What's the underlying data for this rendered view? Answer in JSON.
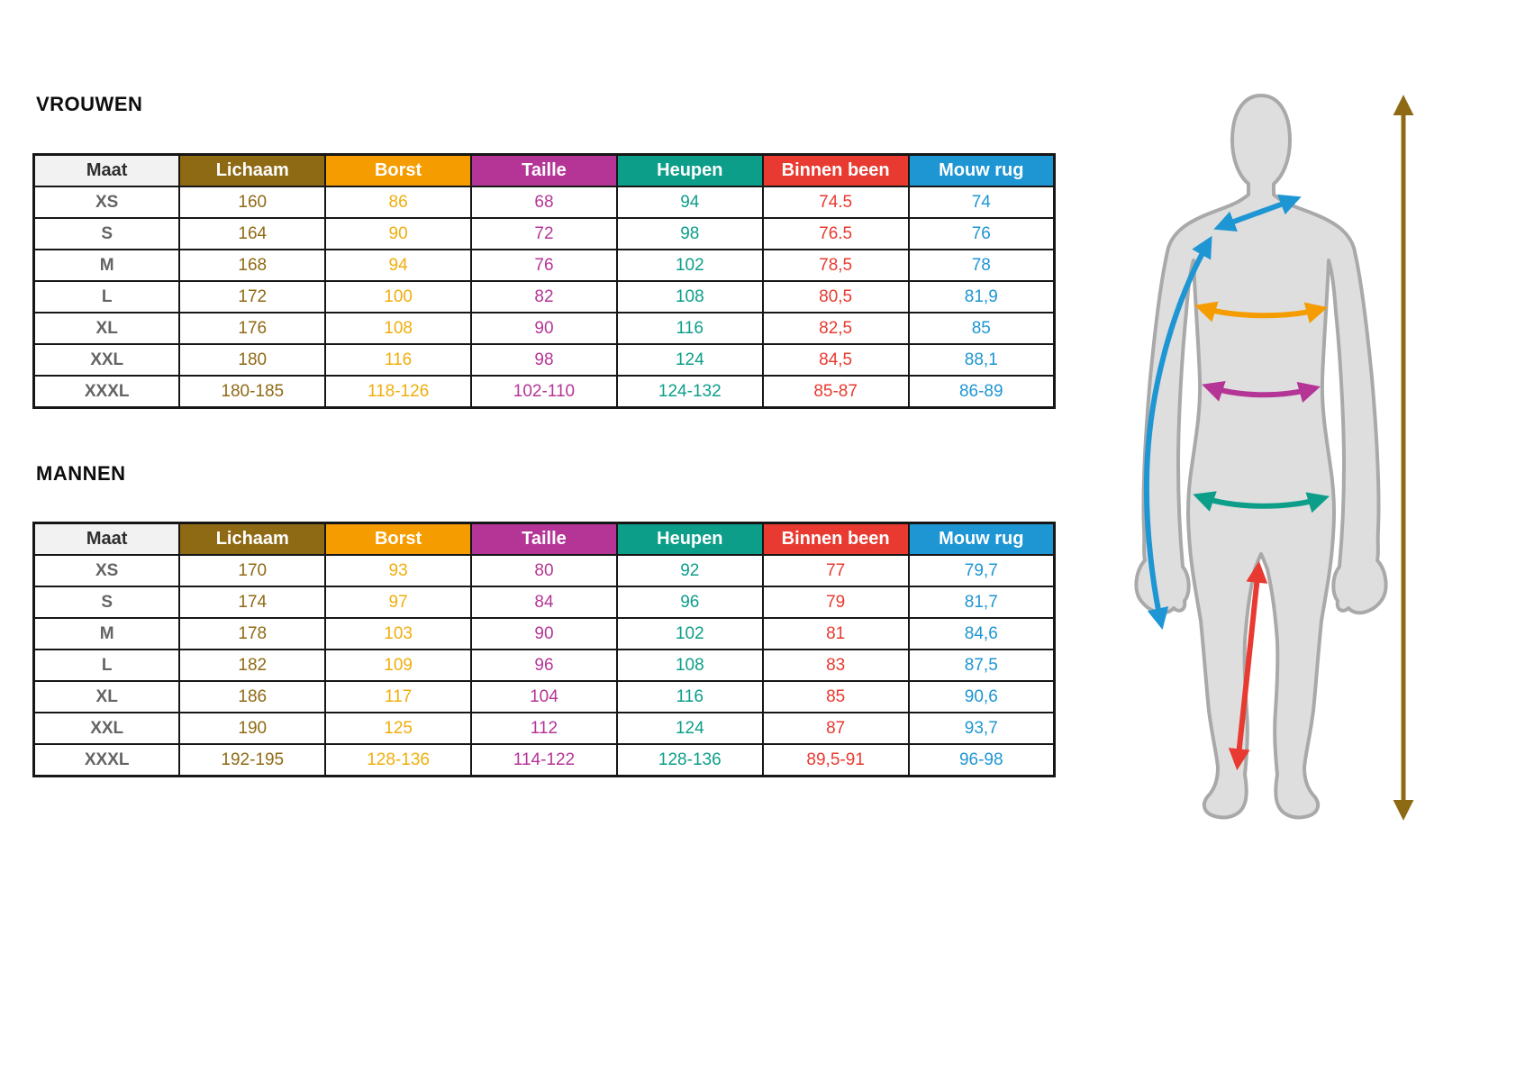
{
  "page": {
    "background": "#ffffff"
  },
  "sections": {
    "women_title": "VROUWEN",
    "men_title": "MANNEN"
  },
  "table": {
    "size_text_color": "#646464",
    "header": [
      {
        "key": "maat",
        "label": "Maat",
        "bg": "#f2f2f2",
        "text": "#2e2e2e",
        "value_color": "#646464"
      },
      {
        "key": "lichaam",
        "label": "Lichaam",
        "bg": "#8f6a14",
        "text": "#ffffff",
        "value_color": "#8f6a14"
      },
      {
        "key": "borst",
        "label": "Borst",
        "bg": "#f59c00",
        "text": "#ffffff",
        "value_color": "#f0ae0c"
      },
      {
        "key": "taille",
        "label": "Taille",
        "bg": "#b53597",
        "text": "#ffffff",
        "value_color": "#b53597"
      },
      {
        "key": "heupen",
        "label": "Heupen",
        "bg": "#0d9e8a",
        "text": "#ffffff",
        "value_color": "#0d9e8a"
      },
      {
        "key": "binnen_been",
        "label": "Binnen been",
        "bg": "#e83a30",
        "text": "#ffffff",
        "value_color": "#e83a30"
      },
      {
        "key": "mouw_rug",
        "label": "Mouw rug",
        "bg": "#1e96d3",
        "text": "#ffffff",
        "value_color": "#1e96d3"
      }
    ]
  },
  "women": {
    "rows": [
      [
        "XS",
        "160",
        "86",
        "68",
        "94",
        "74.5",
        "74"
      ],
      [
        "S",
        "164",
        "90",
        "72",
        "98",
        "76.5",
        "76"
      ],
      [
        "M",
        "168",
        "94",
        "76",
        "102",
        "78,5",
        "78"
      ],
      [
        "L",
        "172",
        "100",
        "82",
        "108",
        "80,5",
        "81,9"
      ],
      [
        "XL",
        "176",
        "108",
        "90",
        "116",
        "82,5",
        "85"
      ],
      [
        "XXL",
        "180",
        "116",
        "98",
        "124",
        "84,5",
        "88,1"
      ],
      [
        "XXXL",
        "180-185",
        "118-126",
        "102-110",
        "124-132",
        "85-87",
        "86-89"
      ]
    ]
  },
  "men": {
    "rows": [
      [
        "XS",
        "170",
        "93",
        "80",
        "92",
        "77",
        "79,7"
      ],
      [
        "S",
        "174",
        "97",
        "84",
        "96",
        "79",
        "81,7"
      ],
      [
        "M",
        "178",
        "103",
        "90",
        "102",
        "81",
        "84,6"
      ],
      [
        "L",
        "182",
        "109",
        "96",
        "108",
        "83",
        "87,5"
      ],
      [
        "XL",
        "186",
        "117",
        "104",
        "116",
        "85",
        "90,6"
      ],
      [
        "XXL",
        "190",
        "125",
        "112",
        "124",
        "87",
        "93,7"
      ],
      [
        "XXXL",
        "192-195",
        "128-136",
        "114-122",
        "128-136",
        "89,5-91",
        "96-98"
      ]
    ]
  },
  "figure": {
    "silhouette_fill": "#dedede",
    "silhouette_stroke": "#a9a9a9",
    "arrow_colors": {
      "lichaam": "#8f6a14",
      "borst": "#f59c00",
      "taille": "#b53597",
      "heupen": "#0d9e8a",
      "binnen_been": "#e83a30",
      "mouw_rug": "#1e96d3"
    }
  }
}
